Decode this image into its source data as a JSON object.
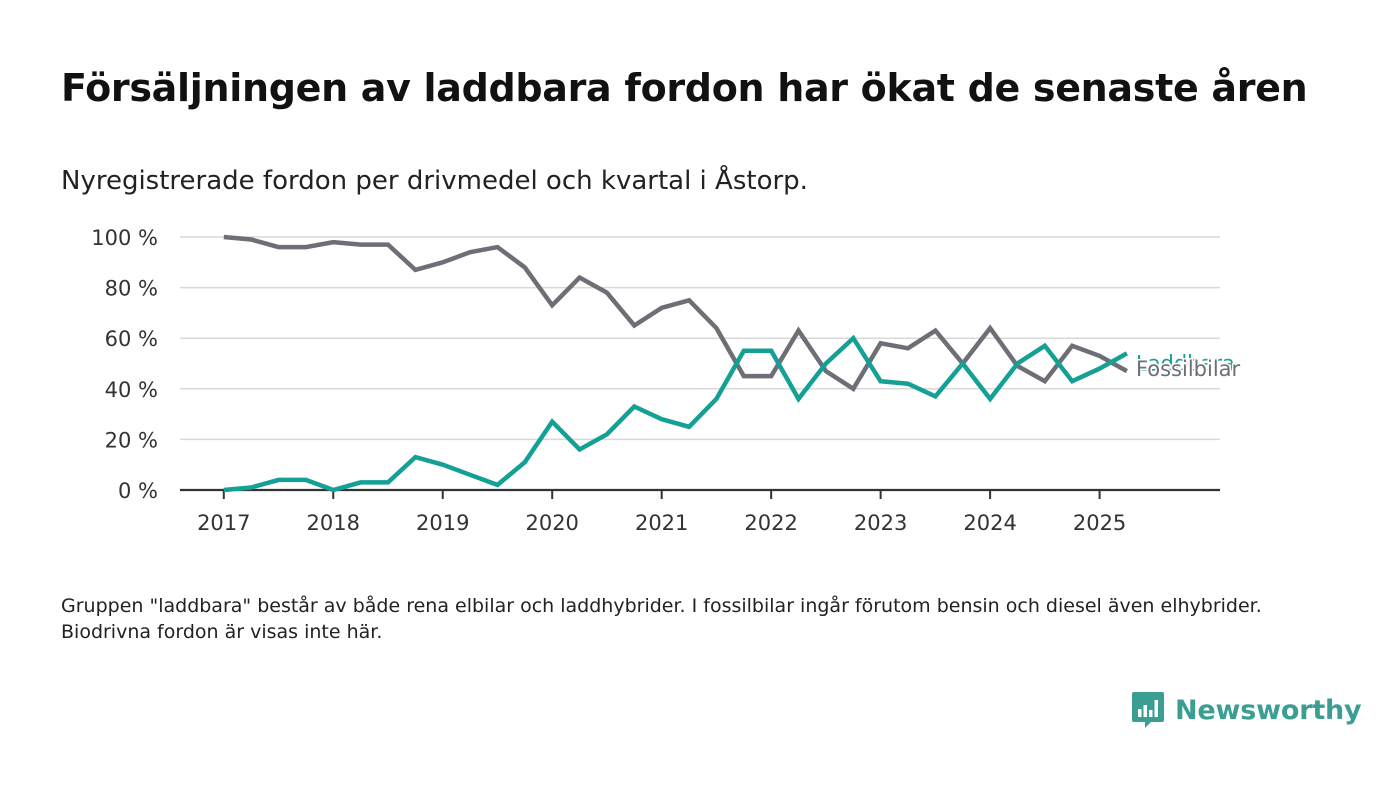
{
  "title": "Försäljningen av laddbara fordon har ökat de senaste åren",
  "subtitle": "Nyregistrerade fordon per drivmedel och kvartal i Åstorp.",
  "note": "Gruppen \"laddbara\" består av både rena elbilar och laddhybrider. I fossilbilar ingår förutom bensin och diesel även elhybrider. Biodrivna fordon är visas inte här.",
  "brand": {
    "name": "Newsworthy",
    "color": "#3a9e93"
  },
  "chart_data": {
    "type": "line",
    "x": [
      2017.0,
      2017.25,
      2017.5,
      2017.75,
      2018.0,
      2018.25,
      2018.5,
      2018.75,
      2019.0,
      2019.25,
      2019.5,
      2019.75,
      2020.0,
      2020.25,
      2020.5,
      2020.75,
      2021.0,
      2021.25,
      2021.5,
      2021.75,
      2022.0,
      2022.25,
      2022.5,
      2022.75,
      2023.0,
      2023.25,
      2023.5,
      2023.75,
      2024.0,
      2024.25,
      2024.5,
      2024.75,
      2025.0,
      2025.25
    ],
    "series": [
      {
        "name": "Fossilbilar",
        "color": "#6e6e76",
        "values": [
          100,
          99,
          96,
          96,
          98,
          97,
          97,
          87,
          90,
          94,
          96,
          88,
          73,
          84,
          78,
          65,
          72,
          75,
          64,
          45,
          45,
          63,
          47,
          40,
          58,
          56,
          63,
          50,
          64,
          49,
          43,
          57,
          53,
          47
        ]
      },
      {
        "name": "Laddbara",
        "color": "#14a095",
        "values": [
          0,
          1,
          4,
          4,
          0,
          3,
          3,
          13,
          10,
          6,
          2,
          11,
          27,
          16,
          22,
          33,
          28,
          25,
          36,
          55,
          55,
          36,
          50,
          60,
          43,
          42,
          37,
          50,
          36,
          50,
          57,
          43,
          48,
          54
        ]
      }
    ],
    "y_ticks": [
      0,
      20,
      40,
      60,
      80,
      100
    ],
    "y_tick_suffix": " %",
    "x_ticks": [
      2017,
      2018,
      2019,
      2020,
      2021,
      2022,
      2023,
      2024,
      2025
    ],
    "xlim": [
      2016.6,
      2026.1
    ],
    "ylim": [
      0,
      100
    ],
    "grid": "horizontal",
    "legend": "inline-right"
  }
}
